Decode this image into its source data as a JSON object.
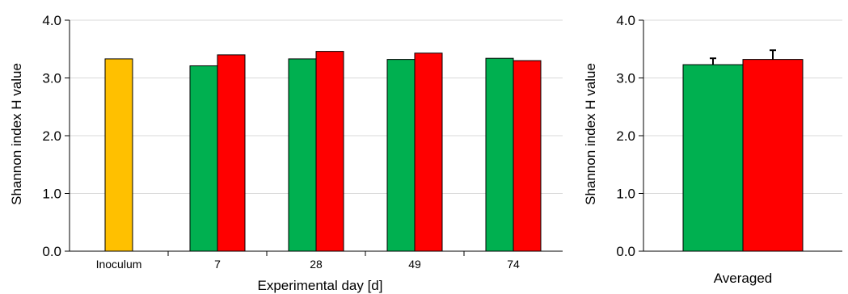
{
  "colors": {
    "inoculum": "#FFC000",
    "green": "#00B050",
    "red": "#FF0000",
    "grid": "#d9d9d9",
    "axis": "#000000"
  },
  "chart_data": [
    {
      "type": "bar",
      "title": "",
      "xlabel": "Experimental day [d]",
      "ylabel": "Shannon index H value",
      "ylim": [
        0,
        4
      ],
      "yticks": [
        "0.0",
        "1.0",
        "2.0",
        "3.0",
        "4.0"
      ],
      "grid": true,
      "categories": [
        "Inoculum",
        "7",
        "28",
        "49",
        "74"
      ],
      "series": [
        {
          "values": [
            3.33,
            null,
            null,
            null,
            null
          ],
          "color": "#FFC000"
        },
        {
          "values": [
            null,
            3.21,
            3.33,
            3.32,
            3.34
          ],
          "color": "#00B050"
        },
        {
          "values": [
            null,
            3.4,
            3.46,
            3.43,
            3.3
          ],
          "color": "#FF0000"
        }
      ]
    },
    {
      "type": "bar",
      "title": "",
      "xlabel": "",
      "ylabel": "Shannon index H value",
      "ylim": [
        0,
        4
      ],
      "yticks": [
        "0.0",
        "1.0",
        "2.0",
        "3.0",
        "4.0"
      ],
      "grid": true,
      "categories": [
        "Averaged"
      ],
      "series": [
        {
          "values": [
            3.23
          ],
          "errors": [
            0.11
          ],
          "color": "#00B050"
        },
        {
          "values": [
            3.32
          ],
          "errors": [
            0.16
          ],
          "color": "#FF0000"
        }
      ]
    }
  ]
}
